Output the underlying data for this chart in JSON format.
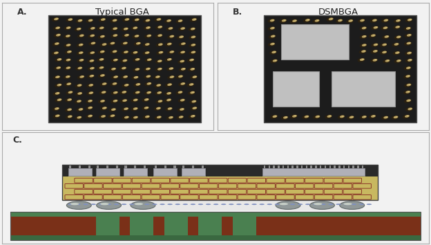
{
  "title_a": "Typical BGA",
  "title_b": "DSMBGA",
  "label_a": "A.",
  "label_b": "B.",
  "label_c": "C.",
  "panel_bg": "#f2f2f2",
  "bga_bg": "#1c1c1c",
  "bga_dot_gold": "#b8a060",
  "bga_dot_highlight": "#d4c080",
  "bga_dot_shadow": "#2a2010",
  "chip_gray": "#c0c0c0",
  "chip_edge": "#909090",
  "pcb_green_top": "#4a8050",
  "pcb_green_bot": "#3a6840",
  "pcb_brown": "#7a3018",
  "pcb_dark_green_trace": "#2a5030",
  "sub_yellow": "#c8b860",
  "sub_yellow_light": "#d8c870",
  "sub_red_line": "#8c3a2a",
  "mold_black": "#2a2a2a",
  "mold_edge": "#1a1a1a",
  "solder_gray": "#909898",
  "solder_highlight": "#c8d0c8",
  "die_gray": "#b0b0b8",
  "die_edge": "#808088",
  "green_strip": "#5a9060",
  "pkg_outline": "#404040",
  "white_strip": "#e0e0e0",
  "blue_dots": "#8090c0"
}
